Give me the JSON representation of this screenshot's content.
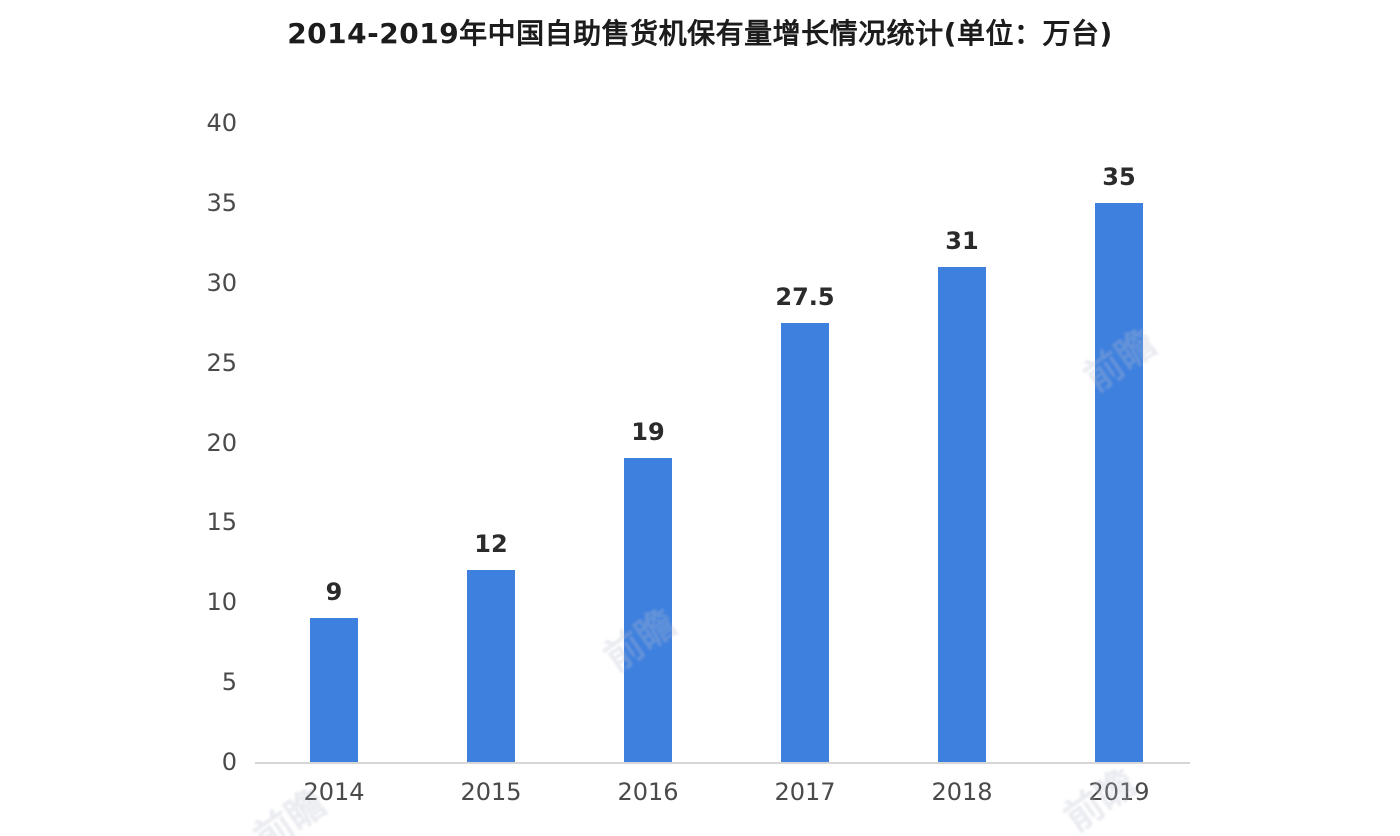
{
  "chart": {
    "title": "2014-2019年中国自助售货机保有量增长情况统计(单位：万台)"
  },
  "chart_data": {
    "type": "bar",
    "title": "2014-2019年中国自助售货机保有量增长情况统计(单位：万台)",
    "categories": [
      "2014",
      "2015",
      "2016",
      "2017",
      "2018",
      "2019"
    ],
    "values": [
      9,
      12,
      19,
      27.5,
      31,
      35
    ],
    "data_labels": [
      "9",
      "12",
      "19",
      "27.5",
      "31",
      "35"
    ],
    "xlabel": "",
    "ylabel": "",
    "unit": "万台",
    "yticks": [
      0,
      5,
      10,
      15,
      20,
      25,
      30,
      35,
      40
    ],
    "ylim": [
      0,
      40
    ],
    "grid": false,
    "legend_position": "none",
    "bar_color": "#3e80de",
    "axis_line_color": "#d6d6d6",
    "tick_label_color": "#4a4a4a",
    "title_color": "#1c1c1c"
  },
  "watermark": {
    "text": "前瞻"
  }
}
